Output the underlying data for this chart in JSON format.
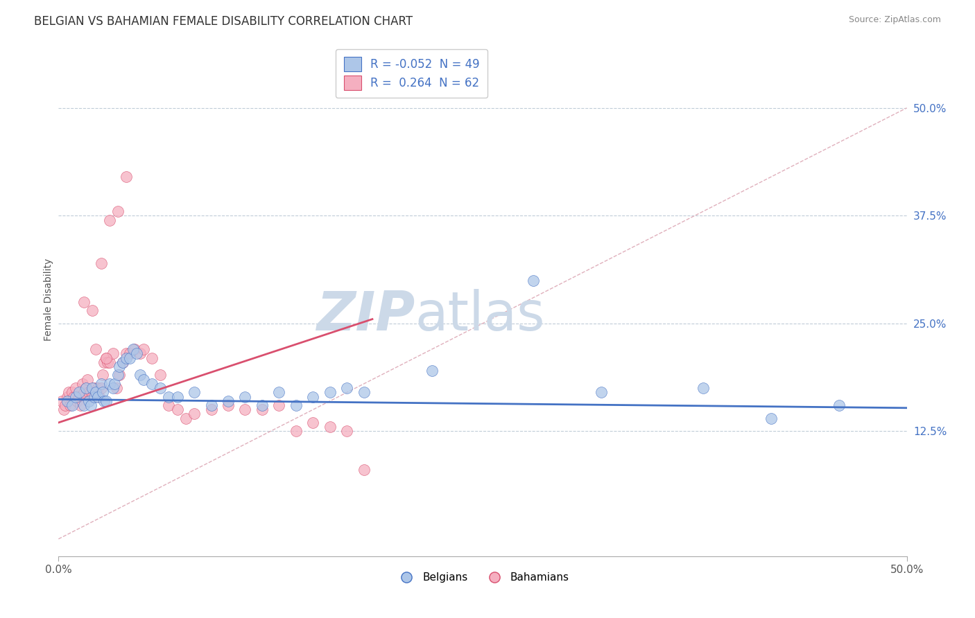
{
  "title": "BELGIAN VS BAHAMIAN FEMALE DISABILITY CORRELATION CHART",
  "source": "Source: ZipAtlas.com",
  "ylabel": "Female Disability",
  "right_yticks": [
    0.125,
    0.25,
    0.375,
    0.5
  ],
  "right_yticklabels": [
    "12.5%",
    "25.0%",
    "37.5%",
    "50.0%"
  ],
  "xlim": [
    0.0,
    0.5
  ],
  "ylim": [
    -0.02,
    0.575
  ],
  "legend_R_blue": "-0.052",
  "legend_N_blue": "49",
  "legend_R_pink": "0.264",
  "legend_N_pink": "62",
  "blue_color": "#adc6e8",
  "pink_color": "#f5afc0",
  "trend_blue": "#4472c4",
  "trend_pink": "#d94f6e",
  "title_color": "#333333",
  "watermark_color": "#ccd9e8",
  "background": "#ffffff",
  "grid_color": "#c0ccd8",
  "diag_color": "#e0b0bc",
  "belgians_x": [
    0.005,
    0.008,
    0.01,
    0.012,
    0.015,
    0.016,
    0.018,
    0.019,
    0.02,
    0.021,
    0.022,
    0.023,
    0.025,
    0.026,
    0.027,
    0.028,
    0.03,
    0.032,
    0.033,
    0.035,
    0.036,
    0.038,
    0.04,
    0.042,
    0.044,
    0.046,
    0.048,
    0.05,
    0.055,
    0.06,
    0.065,
    0.07,
    0.08,
    0.09,
    0.1,
    0.11,
    0.12,
    0.13,
    0.14,
    0.15,
    0.16,
    0.17,
    0.18,
    0.22,
    0.28,
    0.32,
    0.38,
    0.42,
    0.46
  ],
  "belgians_y": [
    0.16,
    0.155,
    0.165,
    0.17,
    0.155,
    0.175,
    0.16,
    0.155,
    0.175,
    0.165,
    0.17,
    0.165,
    0.18,
    0.17,
    0.16,
    0.16,
    0.18,
    0.175,
    0.18,
    0.19,
    0.2,
    0.205,
    0.21,
    0.21,
    0.22,
    0.215,
    0.19,
    0.185,
    0.18,
    0.175,
    0.165,
    0.165,
    0.17,
    0.155,
    0.16,
    0.165,
    0.155,
    0.17,
    0.155,
    0.165,
    0.17,
    0.175,
    0.17,
    0.195,
    0.3,
    0.17,
    0.175,
    0.14,
    0.155
  ],
  "bahamians_x": [
    0.002,
    0.003,
    0.004,
    0.005,
    0.006,
    0.007,
    0.008,
    0.009,
    0.01,
    0.011,
    0.012,
    0.013,
    0.014,
    0.015,
    0.016,
    0.017,
    0.018,
    0.019,
    0.02,
    0.021,
    0.022,
    0.023,
    0.024,
    0.025,
    0.026,
    0.027,
    0.028,
    0.029,
    0.03,
    0.032,
    0.034,
    0.036,
    0.038,
    0.04,
    0.042,
    0.045,
    0.048,
    0.05,
    0.055,
    0.06,
    0.065,
    0.07,
    0.075,
    0.08,
    0.09,
    0.1,
    0.11,
    0.12,
    0.13,
    0.14,
    0.15,
    0.16,
    0.17,
    0.18,
    0.025,
    0.03,
    0.035,
    0.04,
    0.015,
    0.02,
    0.022,
    0.028
  ],
  "bahamians_y": [
    0.16,
    0.15,
    0.155,
    0.165,
    0.17,
    0.155,
    0.17,
    0.165,
    0.175,
    0.16,
    0.165,
    0.155,
    0.18,
    0.17,
    0.175,
    0.185,
    0.17,
    0.17,
    0.165,
    0.175,
    0.17,
    0.175,
    0.165,
    0.175,
    0.19,
    0.205,
    0.21,
    0.205,
    0.205,
    0.215,
    0.175,
    0.19,
    0.205,
    0.215,
    0.215,
    0.22,
    0.215,
    0.22,
    0.21,
    0.19,
    0.155,
    0.15,
    0.14,
    0.145,
    0.15,
    0.155,
    0.15,
    0.15,
    0.155,
    0.125,
    0.135,
    0.13,
    0.125,
    0.08,
    0.32,
    0.37,
    0.38,
    0.42,
    0.275,
    0.265,
    0.22,
    0.21
  ]
}
